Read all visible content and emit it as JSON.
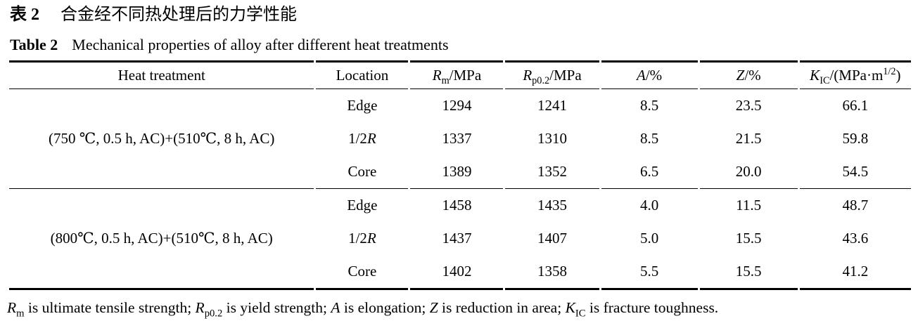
{
  "captions": {
    "zh_label": "表 2",
    "zh_text": "合金经不同热处理后的力学性能",
    "en_label": "Table 2",
    "en_text": "Mechanical properties of alloy after different heat treatments"
  },
  "table": {
    "header": [
      {
        "tokens": [
          {
            "t": "Heat treatment"
          }
        ]
      },
      {
        "tokens": [
          {
            "t": "Location"
          }
        ]
      },
      {
        "tokens": [
          {
            "t": "R",
            "s": "i"
          },
          {
            "t": "m",
            "s": "sub"
          },
          {
            "t": "/MPa"
          }
        ]
      },
      {
        "tokens": [
          {
            "t": "R",
            "s": "i"
          },
          {
            "t": "p0.2",
            "s": "sub"
          },
          {
            "t": "/MPa"
          }
        ]
      },
      {
        "tokens": [
          {
            "t": "A",
            "s": "i"
          },
          {
            "t": "/%"
          }
        ]
      },
      {
        "tokens": [
          {
            "t": "Z",
            "s": "i"
          },
          {
            "t": "/%"
          }
        ]
      },
      {
        "tokens": [
          {
            "t": "K",
            "s": "i"
          },
          {
            "t": "IC",
            "s": "sub"
          },
          {
            "t": "/(MPa·m"
          },
          {
            "t": "1/2",
            "s": "sup"
          },
          {
            "t": ")"
          }
        ]
      }
    ],
    "groups": [
      {
        "heat_treatment": "(750 ℃, 0.5 h, AC)+(510℃, 8 h, AC)",
        "rows": [
          {
            "location_tokens": [
              {
                "t": "Edge"
              }
            ],
            "values": [
              "1294",
              "1241",
              "8.5",
              "23.5",
              "66.1"
            ]
          },
          {
            "location_tokens": [
              {
                "t": "1/2"
              },
              {
                "t": "R",
                "s": "i"
              }
            ],
            "values": [
              "1337",
              "1310",
              "8.5",
              "21.5",
              "59.8"
            ]
          },
          {
            "location_tokens": [
              {
                "t": "Core"
              }
            ],
            "values": [
              "1389",
              "1352",
              "6.5",
              "20.0",
              "54.5"
            ]
          }
        ]
      },
      {
        "heat_treatment": "(800℃, 0.5 h, AC)+(510℃, 8 h, AC)",
        "rows": [
          {
            "location_tokens": [
              {
                "t": "Edge"
              }
            ],
            "values": [
              "1458",
              "1435",
              "4.0",
              "11.5",
              "48.7"
            ]
          },
          {
            "location_tokens": [
              {
                "t": "1/2"
              },
              {
                "t": "R",
                "s": "i"
              }
            ],
            "values": [
              "1437",
              "1407",
              "5.0",
              "15.5",
              "43.6"
            ]
          },
          {
            "location_tokens": [
              {
                "t": "Core"
              }
            ],
            "values": [
              "1402",
              "1358",
              "5.5",
              "15.5",
              "41.2"
            ]
          }
        ]
      }
    ]
  },
  "footnote": {
    "tokens": [
      {
        "t": "R",
        "s": "i"
      },
      {
        "t": "m",
        "s": "sub"
      },
      {
        "t": " is ultimate tensile strength; "
      },
      {
        "t": "R",
        "s": "i"
      },
      {
        "t": "p0.2",
        "s": "sub"
      },
      {
        "t": " is yield strength; "
      },
      {
        "t": "A",
        "s": "i"
      },
      {
        "t": " is elongation; "
      },
      {
        "t": "Z",
        "s": "i"
      },
      {
        "t": " is reduction in area; "
      },
      {
        "t": "K",
        "s": "i"
      },
      {
        "t": "IC",
        "s": "sub"
      },
      {
        "t": " is fracture toughness."
      }
    ]
  },
  "colors": {
    "text": "#000000",
    "background": "#ffffff",
    "rule": "#000000"
  }
}
